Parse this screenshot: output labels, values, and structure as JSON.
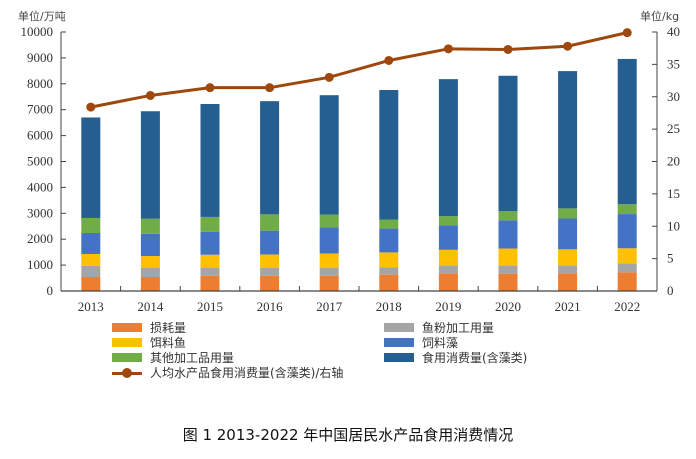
{
  "chart_data": {
    "type": "bar",
    "stacked": true,
    "title": "",
    "caption": "图 1  2013-2022 年中国居民水产品食用消费情况",
    "ylabel": "单位/万吨",
    "y2label": "单位/kg",
    "ylim": [
      0,
      10000
    ],
    "y2lim": [
      0,
      40
    ],
    "yticks": [
      "0",
      "1000",
      "2000",
      "3000",
      "4000",
      "5000",
      "6000",
      "7000",
      "8000",
      "9000",
      "10000"
    ],
    "y2ticks": [
      "0",
      "5",
      "10",
      "15",
      "20",
      "25",
      "30",
      "35",
      "40"
    ],
    "categories": [
      "2013",
      "2014",
      "2015",
      "2016",
      "2017",
      "2018",
      "2019",
      "2020",
      "2021",
      "2022"
    ],
    "series": [
      {
        "name": "损耗量",
        "color": "#ED7D31",
        "values": [
          540,
          540,
          590,
          590,
          590,
          630,
          680,
          670,
          680,
          720
        ]
      },
      {
        "name": "鱼粉加工用量",
        "color": "#A5A5A5",
        "values": [
          430,
          350,
          300,
          300,
          310,
          290,
          310,
          320,
          310,
          350
        ]
      },
      {
        "name": "饵料鱼",
        "color": "#FFC000",
        "values": [
          460,
          460,
          510,
          520,
          550,
          570,
          600,
          650,
          620,
          580
        ]
      },
      {
        "name": "饲料藻",
        "color": "#4472C4",
        "values": [
          810,
          860,
          880,
          920,
          1000,
          920,
          950,
          1090,
          1190,
          1320
        ]
      },
      {
        "name": "其他加工品用量",
        "color": "#70AD47",
        "values": [
          580,
          580,
          580,
          630,
          500,
          350,
          350,
          350,
          390,
          380
        ]
      },
      {
        "name": "食用消费量(含藻类)",
        "color": "#255E91",
        "values": [
          3880,
          4150,
          4360,
          4370,
          4610,
          5000,
          5290,
          5230,
          5300,
          5610
        ]
      }
    ],
    "line_series": {
      "name": "人均水产品食用消费量(含藻类)/右轴",
      "color": "#9E480E",
      "axis": "right",
      "values": [
        28.4,
        30.2,
        31.4,
        31.4,
        33.0,
        35.6,
        37.4,
        37.3,
        37.8,
        39.9
      ]
    },
    "legend_position": "bottom",
    "grid": false
  },
  "legend": {
    "items": [
      {
        "label": "损耗量",
        "color": "#ED7D31"
      },
      {
        "label": "鱼粉加工用量",
        "color": "#A5A5A5"
      },
      {
        "label": "饵料鱼",
        "color": "#FFC000"
      },
      {
        "label": "饲料藻",
        "color": "#4472C4"
      },
      {
        "label": "其他加工品用量",
        "color": "#70AD47"
      },
      {
        "label": "食用消费量(含藻类)",
        "color": "#255E91"
      }
    ],
    "line_label": "人均水产品食用消费量(含藻类)/右轴"
  }
}
